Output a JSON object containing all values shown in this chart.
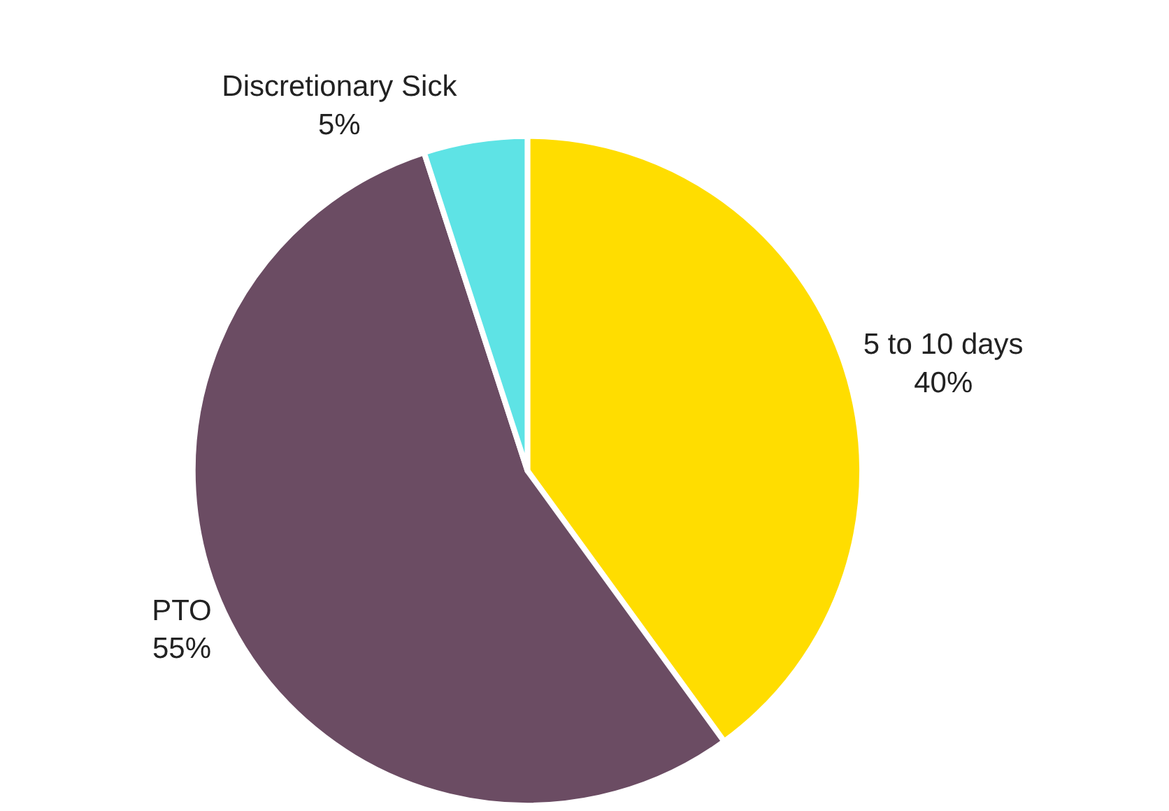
{
  "chart_data": {
    "type": "pie",
    "categories": [
      "5 to 10 days",
      "PTO",
      "Discretionary Sick"
    ],
    "values": [
      40,
      55,
      5
    ],
    "value_labels": [
      "40%",
      "55%",
      "5%"
    ],
    "colors": [
      "#ffdd00",
      "#6b4c63",
      "#5ee3e5"
    ],
    "legend": false
  }
}
